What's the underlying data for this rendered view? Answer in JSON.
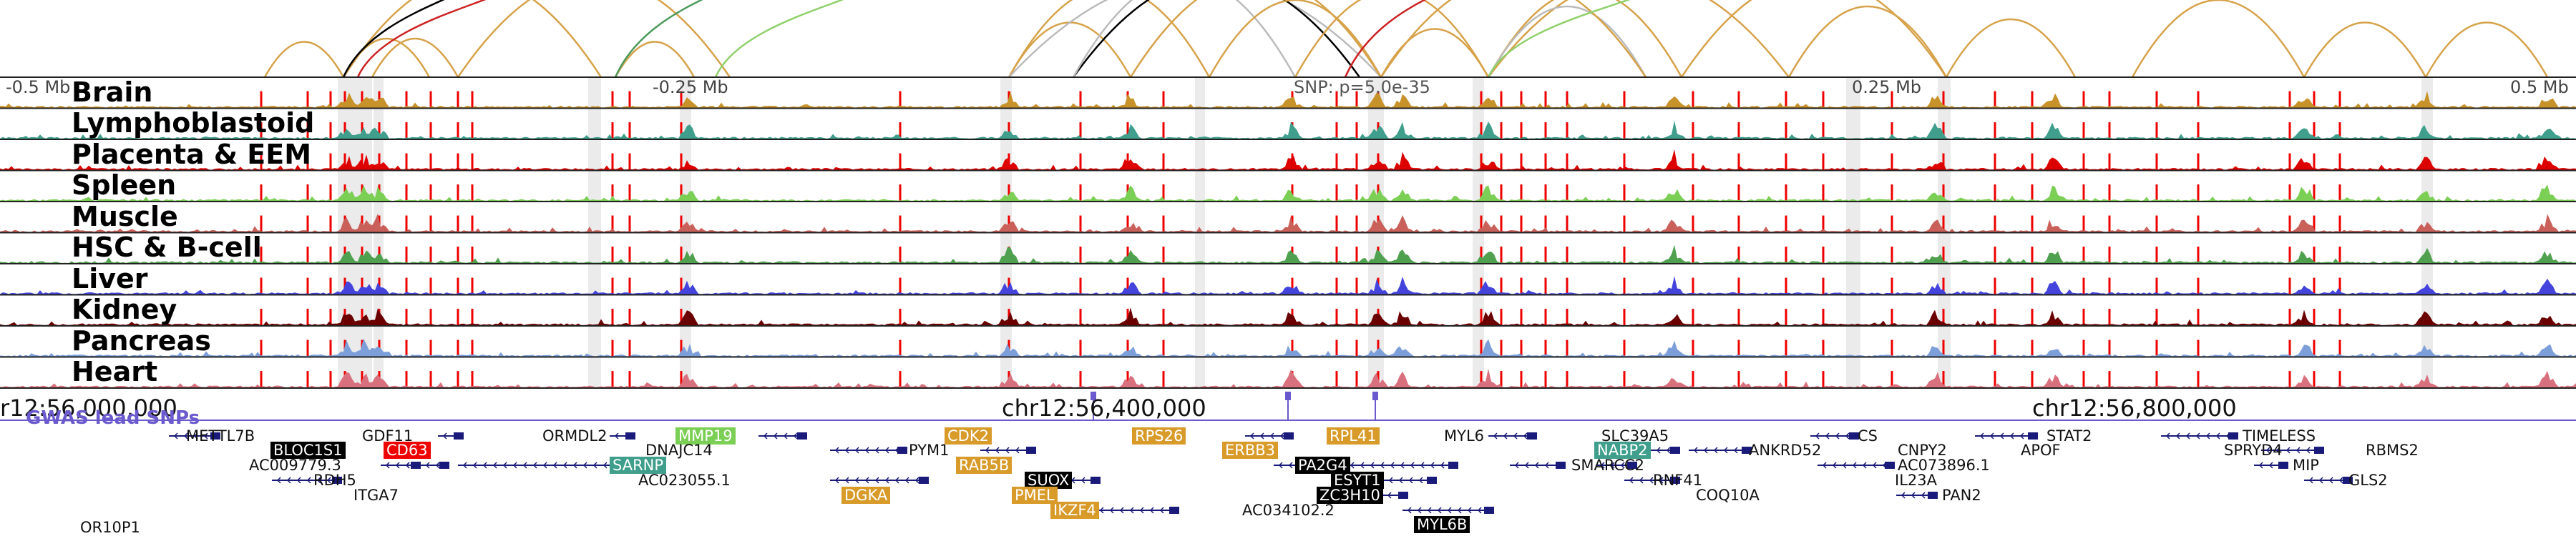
{
  "colors": {
    "brain": "#c8922a",
    "lymphoblastoid": "#3f9f8c",
    "placenta": "#dd0000",
    "spleen": "#7ccf55",
    "muscle": "#c9605a",
    "hsc": "#4fa04f",
    "liver": "#4444dd",
    "kidney": "#6b0000",
    "pancreas": "#7d9fd9",
    "heart": "#d9707d",
    "gwas": "#6a5acd",
    "arc_gold": "#d6a24a",
    "arc_grey": "#bbbbbb",
    "arc_black": "#000000",
    "arc_red": "#cc2222",
    "arc_green": "#4c9a5c",
    "arc_lightgreen": "#8fd06b",
    "gene_strand": "#1a1a7a",
    "snp_line": "#ee0000"
  },
  "tracks": [
    {
      "label": "Brain",
      "color_key": "brain"
    },
    {
      "label": "Lymphoblastoid",
      "color_key": "lymphoblastoid"
    },
    {
      "label": "Placenta & EEM",
      "color_key": "placenta"
    },
    {
      "label": "Spleen",
      "color_key": "spleen"
    },
    {
      "label": "Muscle",
      "color_key": "muscle"
    },
    {
      "label": "HSC & B-cell",
      "color_key": "hsc"
    },
    {
      "label": "Liver",
      "color_key": "liver"
    },
    {
      "label": "Kidney",
      "color_key": "kidney"
    },
    {
      "label": "Pancreas",
      "color_key": "pancreas"
    },
    {
      "label": "Heart",
      "color_key": "heart"
    }
  ],
  "axis": {
    "labels": [
      "-0.5 Mb",
      "-0.25 Mb",
      "0.25 Mb",
      "0.5 Mb"
    ],
    "snp_label": "SNP: p=5.0e-35"
  },
  "chromosome": {
    "left_label": "r12:56,000,000",
    "center_label": "chr12:56,400,000",
    "right_label": "chr12:56,800,000"
  },
  "gwas_label": "GWAS lead SNPs",
  "genes": [
    {
      "name": "METTL7B",
      "style": "plain"
    },
    {
      "name": "BLOC1S1",
      "style": "hl-black"
    },
    {
      "name": "CD63",
      "style": "hl-red"
    },
    {
      "name": "GDF11",
      "style": "plain"
    },
    {
      "name": "AC009779.3",
      "style": "plain"
    },
    {
      "name": "RDH5",
      "style": "plain"
    },
    {
      "name": "ITGA7",
      "style": "plain"
    },
    {
      "name": "ORMDL2",
      "style": "plain"
    },
    {
      "name": "MMP19",
      "style": "hl-green"
    },
    {
      "name": "DNAJC14",
      "style": "plain"
    },
    {
      "name": "SARNP",
      "style": "hl-teal"
    },
    {
      "name": "AC023055.1",
      "style": "plain"
    },
    {
      "name": "PYM1",
      "style": "plain"
    },
    {
      "name": "CDK2",
      "style": "hl-gold"
    },
    {
      "name": "RAB5B",
      "style": "hl-gold"
    },
    {
      "name": "SUOX",
      "style": "hl-black"
    },
    {
      "name": "DGKA",
      "style": "hl-gold"
    },
    {
      "name": "PMEL",
      "style": "hl-gold"
    },
    {
      "name": "IKZF4",
      "style": "hl-gold"
    },
    {
      "name": "RPS26",
      "style": "hl-gold"
    },
    {
      "name": "ERBB3",
      "style": "hl-gold"
    },
    {
      "name": "RPL41",
      "style": "hl-gold"
    },
    {
      "name": "PA2G4",
      "style": "hl-black"
    },
    {
      "name": "ESYT1",
      "style": "hl-black"
    },
    {
      "name": "ZC3H10",
      "style": "hl-black"
    },
    {
      "name": "AC034102.2",
      "style": "plain"
    },
    {
      "name": "MYL6",
      "style": "plain"
    },
    {
      "name": "MYL6B",
      "style": "hl-black"
    },
    {
      "name": "SLC39A5",
      "style": "plain"
    },
    {
      "name": "NABP2",
      "style": "hl-teal"
    },
    {
      "name": "SMARCC2",
      "style": "plain"
    },
    {
      "name": "RNF41",
      "style": "plain"
    },
    {
      "name": "ANKRD52",
      "style": "plain"
    },
    {
      "name": "COQ10A",
      "style": "plain"
    },
    {
      "name": "CS",
      "style": "plain"
    },
    {
      "name": "CNPY2",
      "style": "plain"
    },
    {
      "name": "AC073896.1",
      "style": "plain"
    },
    {
      "name": "IL23A",
      "style": "plain"
    },
    {
      "name": "PAN2",
      "style": "plain"
    },
    {
      "name": "STAT2",
      "style": "plain"
    },
    {
      "name": "APOF",
      "style": "plain"
    },
    {
      "name": "TIMELESS",
      "style": "plain"
    },
    {
      "name": "SPRYD4",
      "style": "plain"
    },
    {
      "name": "MIP",
      "style": "plain"
    },
    {
      "name": "GLS2",
      "style": "plain"
    },
    {
      "name": "RBMS2",
      "style": "plain"
    },
    {
      "name": "OR10P1",
      "style": "plain"
    }
  ]
}
